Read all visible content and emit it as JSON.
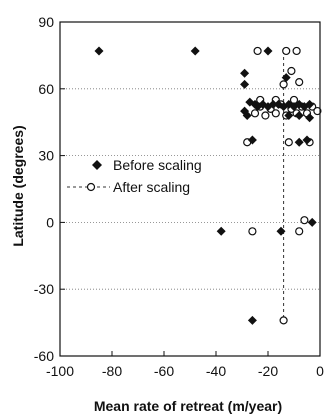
{
  "chart_data": {
    "type": "scatter",
    "xlabel": "Mean rate of retreat (m/year)",
    "ylabel": "Latitude (degrees)",
    "xlim": [
      -100,
      0
    ],
    "ylim": [
      -60,
      90
    ],
    "xticks": [
      -100,
      -80,
      -60,
      -40,
      -20,
      0
    ],
    "yticks": [
      -60,
      -30,
      0,
      30,
      60,
      90
    ],
    "grid": "horizontal dotted",
    "legend_position": "left-middle",
    "reference_line_x": -14,
    "series": [
      {
        "name": "Before scaling",
        "marker": "filled-diamond",
        "points": [
          [
            -85,
            77
          ],
          [
            -48,
            77
          ],
          [
            -20,
            77
          ],
          [
            -29,
            67
          ],
          [
            -29,
            62
          ],
          [
            -13,
            65
          ],
          [
            -25,
            53
          ],
          [
            -27,
            54
          ],
          [
            -29,
            50
          ],
          [
            -28,
            48
          ],
          [
            -22,
            53
          ],
          [
            -20,
            52
          ],
          [
            -18,
            53
          ],
          [
            -16,
            53
          ],
          [
            -14,
            52
          ],
          [
            -12,
            53
          ],
          [
            -10,
            52
          ],
          [
            -8,
            53
          ],
          [
            -6,
            52
          ],
          [
            -4,
            53
          ],
          [
            -24,
            52
          ],
          [
            -12,
            48
          ],
          [
            -8,
            48
          ],
          [
            -4,
            47
          ],
          [
            -26,
            37
          ],
          [
            -8,
            36
          ],
          [
            -5,
            37
          ],
          [
            -38,
            -4
          ],
          [
            -15,
            -4
          ],
          [
            -3,
            0
          ],
          [
            -26,
            -44
          ]
        ]
      },
      {
        "name": "After scaling",
        "marker": "open-circle",
        "points": [
          [
            -24,
            77
          ],
          [
            -13,
            77
          ],
          [
            -9,
            77
          ],
          [
            -11,
            68
          ],
          [
            -8,
            63
          ],
          [
            -14,
            62
          ],
          [
            -25,
            49
          ],
          [
            -23,
            52
          ],
          [
            -21,
            48
          ],
          [
            -19,
            51
          ],
          [
            -17,
            49
          ],
          [
            -15,
            53
          ],
          [
            -13,
            48
          ],
          [
            -11,
            51
          ],
          [
            -9,
            49
          ],
          [
            -7,
            52
          ],
          [
            -5,
            49
          ],
          [
            -3,
            52
          ],
          [
            -1,
            50
          ],
          [
            -23,
            55
          ],
          [
            -17,
            55
          ],
          [
            -10,
            55
          ],
          [
            -28,
            36
          ],
          [
            -12,
            36
          ],
          [
            -4,
            36
          ],
          [
            -26,
            -4
          ],
          [
            -8,
            -4
          ],
          [
            -6,
            1
          ],
          [
            -14,
            -44
          ]
        ]
      }
    ]
  }
}
